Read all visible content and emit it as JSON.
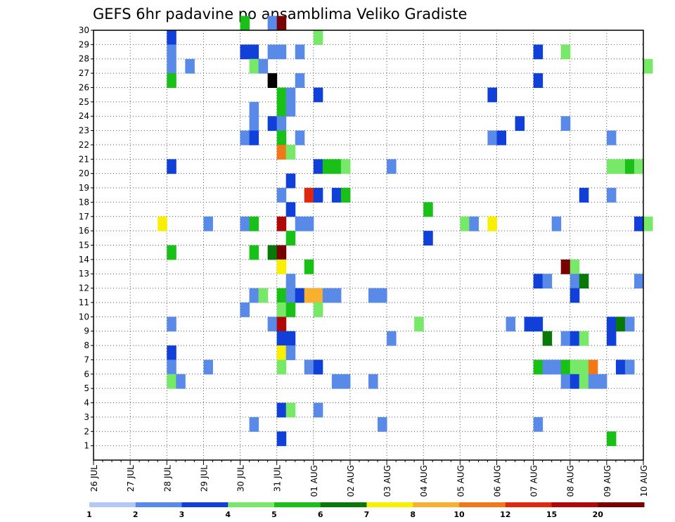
{
  "chart_data": {
    "type": "heatmap",
    "title": "GEFS 6hr padavine po ansamblima Veliko Gradiste",
    "x_ticks": [
      "26 JUL",
      "27 JUL",
      "28 JUL",
      "29 JUL",
      "30 JUL",
      "31 JUL",
      "01 AUG",
      "02 AUG",
      "03 AUG",
      "04 AUG",
      "05 AUG",
      "06 AUG",
      "07 AUG",
      "08 AUG",
      "09 AUG",
      "10 AUG"
    ],
    "y_ticks": [
      "1",
      "2",
      "3",
      "4",
      "5",
      "6",
      "7",
      "8",
      "9",
      "10",
      "11",
      "12",
      "13",
      "14",
      "15",
      "16",
      "17",
      "18",
      "19",
      "20",
      "21",
      "22",
      "23",
      "24",
      "25",
      "26",
      "27",
      "28",
      "29",
      "30"
    ],
    "x_range_steps": [
      0,
      60
    ],
    "y_range": [
      0,
      30
    ],
    "grid": true,
    "colorbar": {
      "labels": [
        "1",
        "2",
        "3",
        "4",
        "5",
        "6",
        "7",
        "8",
        "10",
        "12",
        "15",
        "20"
      ],
      "colors": [
        "#b4c8f5",
        "#5a8ae8",
        "#1040d8",
        "#78e868",
        "#18c018",
        "#087808",
        "#f8f000",
        "#f8b030",
        "#f07818",
        "#e02810",
        "#b00808",
        "#780000"
      ]
    },
    "cells": [
      [
        16,
        30,
        4
      ],
      [
        19,
        30,
        1
      ],
      [
        20,
        30,
        11
      ],
      [
        8,
        29,
        2
      ],
      [
        24,
        29,
        3
      ],
      [
        8,
        28,
        1
      ],
      [
        16,
        28,
        2
      ],
      [
        17,
        28,
        2
      ],
      [
        19,
        28,
        1
      ],
      [
        20,
        28,
        1
      ],
      [
        22,
        28,
        1
      ],
      [
        48,
        28,
        2
      ],
      [
        51,
        28,
        3
      ],
      [
        8,
        27,
        1
      ],
      [
        10,
        27,
        1
      ],
      [
        17,
        27,
        3
      ],
      [
        18,
        27,
        1
      ],
      [
        60,
        27,
        3
      ],
      [
        8,
        26,
        4
      ],
      [
        19,
        26,
        12
      ],
      [
        22,
        26,
        1
      ],
      [
        48,
        26,
        2
      ],
      [
        20,
        25,
        4
      ],
      [
        21,
        25,
        1
      ],
      [
        24,
        25,
        2
      ],
      [
        43,
        25,
        2
      ],
      [
        17,
        24,
        1
      ],
      [
        20,
        24,
        4
      ],
      [
        21,
        24,
        1
      ],
      [
        17,
        23,
        1
      ],
      [
        19,
        23,
        2
      ],
      [
        20,
        23,
        1
      ],
      [
        46,
        23,
        2
      ],
      [
        51,
        23,
        1
      ],
      [
        16,
        22,
        1
      ],
      [
        17,
        22,
        2
      ],
      [
        20,
        22,
        4
      ],
      [
        22,
        22,
        1
      ],
      [
        43,
        22,
        1
      ],
      [
        44,
        22,
        2
      ],
      [
        56,
        22,
        1
      ],
      [
        20,
        21,
        8
      ],
      [
        21,
        21,
        3
      ],
      [
        8,
        20,
        2
      ],
      [
        24,
        20,
        2
      ],
      [
        25,
        20,
        4
      ],
      [
        26,
        20,
        4
      ],
      [
        27,
        20,
        3
      ],
      [
        32,
        20,
        1
      ],
      [
        56,
        20,
        3
      ],
      [
        57,
        20,
        3
      ],
      [
        58,
        20,
        4
      ],
      [
        59,
        20,
        3
      ],
      [
        21,
        19,
        2
      ],
      [
        20,
        18,
        1
      ],
      [
        23,
        18,
        9
      ],
      [
        24,
        18,
        2
      ],
      [
        26,
        18,
        2
      ],
      [
        27,
        18,
        4
      ],
      [
        53,
        18,
        2
      ],
      [
        56,
        18,
        1
      ],
      [
        21,
        17,
        2
      ],
      [
        36,
        17,
        4
      ],
      [
        7,
        16,
        6
      ],
      [
        12,
        16,
        1
      ],
      [
        16,
        16,
        1
      ],
      [
        17,
        16,
        4
      ],
      [
        20,
        16,
        10
      ],
      [
        22,
        16,
        1
      ],
      [
        23,
        16,
        1
      ],
      [
        40,
        16,
        3
      ],
      [
        41,
        16,
        1
      ],
      [
        43,
        16,
        6
      ],
      [
        50,
        16,
        1
      ],
      [
        59,
        16,
        2
      ],
      [
        60,
        16,
        3
      ],
      [
        21,
        15,
        4
      ],
      [
        36,
        15,
        2
      ],
      [
        8,
        14,
        4
      ],
      [
        17,
        14,
        4
      ],
      [
        19,
        14,
        5
      ],
      [
        20,
        14,
        11
      ],
      [
        20,
        13,
        6
      ],
      [
        23,
        13,
        4
      ],
      [
        51,
        13,
        11
      ],
      [
        52,
        13,
        3
      ],
      [
        21,
        12,
        1
      ],
      [
        48,
        12,
        2
      ],
      [
        49,
        12,
        1
      ],
      [
        52,
        12,
        1
      ],
      [
        53,
        12,
        5
      ],
      [
        59,
        12,
        1
      ],
      [
        17,
        11,
        1
      ],
      [
        18,
        11,
        3
      ],
      [
        20,
        11,
        4
      ],
      [
        21,
        11,
        1
      ],
      [
        22,
        11,
        2
      ],
      [
        23,
        11,
        7
      ],
      [
        24,
        11,
        7
      ],
      [
        25,
        11,
        1
      ],
      [
        26,
        11,
        1
      ],
      [
        30,
        11,
        1
      ],
      [
        31,
        11,
        1
      ],
      [
        52,
        11,
        2
      ],
      [
        16,
        10,
        1
      ],
      [
        20,
        10,
        3
      ],
      [
        21,
        10,
        4
      ],
      [
        24,
        10,
        3
      ],
      [
        8,
        9,
        1
      ],
      [
        19,
        9,
        1
      ],
      [
        20,
        9,
        10
      ],
      [
        35,
        9,
        3
      ],
      [
        45,
        9,
        1
      ],
      [
        47,
        9,
        2
      ],
      [
        48,
        9,
        2
      ],
      [
        56,
        9,
        2
      ],
      [
        57,
        9,
        5
      ],
      [
        58,
        9,
        1
      ],
      [
        20,
        8,
        2
      ],
      [
        21,
        8,
        2
      ],
      [
        32,
        8,
        1
      ],
      [
        49,
        8,
        5
      ],
      [
        51,
        8,
        1
      ],
      [
        52,
        8,
        2
      ],
      [
        53,
        8,
        3
      ],
      [
        56,
        8,
        2
      ],
      [
        8,
        7,
        2
      ],
      [
        20,
        7,
        6
      ],
      [
        21,
        7,
        1
      ],
      [
        8,
        6,
        1
      ],
      [
        12,
        6,
        1
      ],
      [
        20,
        6,
        3
      ],
      [
        23,
        6,
        1
      ],
      [
        24,
        6,
        2
      ],
      [
        48,
        6,
        4
      ],
      [
        49,
        6,
        1
      ],
      [
        50,
        6,
        1
      ],
      [
        51,
        6,
        4
      ],
      [
        52,
        6,
        3
      ],
      [
        53,
        6,
        3
      ],
      [
        54,
        6,
        8
      ],
      [
        57,
        6,
        2
      ],
      [
        58,
        6,
        1
      ],
      [
        8,
        5,
        3
      ],
      [
        9,
        5,
        1
      ],
      [
        26,
        5,
        1
      ],
      [
        27,
        5,
        1
      ],
      [
        30,
        5,
        1
      ],
      [
        51,
        5,
        1
      ],
      [
        52,
        5,
        2
      ],
      [
        53,
        5,
        3
      ],
      [
        54,
        5,
        1
      ],
      [
        55,
        5,
        1
      ],
      [
        20,
        3,
        2
      ],
      [
        21,
        3,
        3
      ],
      [
        24,
        3,
        1
      ],
      [
        17,
        2,
        1
      ],
      [
        31,
        2,
        1
      ],
      [
        48,
        2,
        1
      ],
      [
        20,
        1,
        2
      ],
      [
        56,
        1,
        4
      ]
    ]
  }
}
